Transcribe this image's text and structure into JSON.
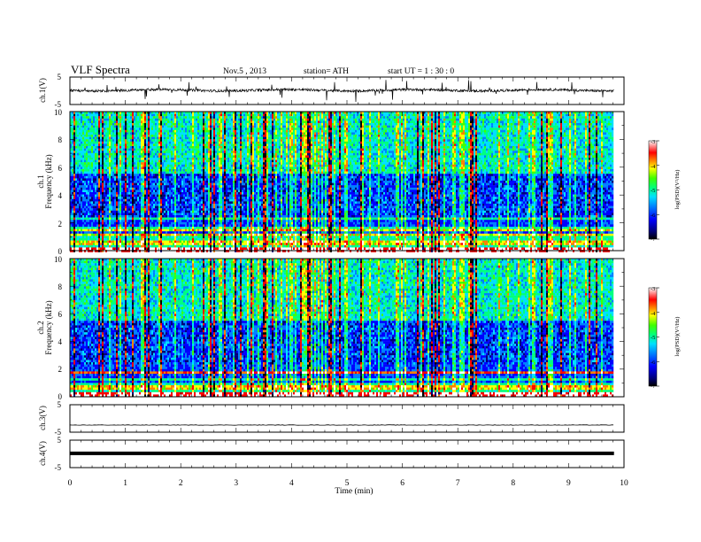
{
  "header": {
    "title": "VLF  Spectra",
    "date": "Nov.5  , 2013",
    "station": "station= ATH",
    "start": "start  UT  =    1 : 30 : 0"
  },
  "chart_data": [
    {
      "type": "line",
      "name": "ch1-waveform",
      "ylabel": "ch.1(V)",
      "ylim": [
        -5,
        5
      ],
      "yticks": [
        "5",
        "-5"
      ],
      "xlim": [
        0,
        10
      ],
      "data_end_min": 9.82,
      "baseline": 0.2
    },
    {
      "type": "heatmap",
      "name": "ch1-spectrogram",
      "ylabel": "ch.1",
      "ylabel2": "Frequency  (kHz)",
      "ylim": [
        0,
        10
      ],
      "yticks": [
        "0",
        "2",
        "4",
        "6",
        "8",
        "10"
      ],
      "xlim": [
        0,
        10
      ],
      "colorbar": {
        "label": "log(PSD)(V²/Hz)",
        "ticks": [
          "-3",
          "-4",
          "-5",
          "-6",
          "-7"
        ],
        "range": [
          -7,
          -3
        ]
      }
    },
    {
      "type": "heatmap",
      "name": "ch2-spectrogram",
      "ylabel": "ch.2",
      "ylabel2": "Frequency  (kHz)",
      "ylim": [
        0,
        10
      ],
      "yticks": [
        "0",
        "2",
        "4",
        "6",
        "8",
        "10"
      ],
      "xlim": [
        0,
        10
      ],
      "colorbar": {
        "label": "log(PSD)(V²/Hz)",
        "ticks": [
          "-3",
          "-4",
          "-5",
          "-6",
          "-7"
        ],
        "range": [
          -7,
          -3
        ]
      }
    },
    {
      "type": "line",
      "name": "ch3-waveform",
      "ylabel": "ch.3(V)",
      "ylim": [
        -5,
        5
      ],
      "yticks": [
        "5",
        "-5"
      ],
      "xlim": [
        0,
        10
      ],
      "baseline": -2.4
    },
    {
      "type": "line",
      "name": "ch4-waveform",
      "ylabel": "ch.4(V)",
      "ylim": [
        -5,
        5
      ],
      "yticks": [
        "5",
        "-5"
      ],
      "xlim": [
        0,
        10
      ],
      "baseline": 0.2,
      "xlabel": "Time  (min)",
      "xticks": [
        "0",
        "1",
        "2",
        "3",
        "4",
        "5",
        "6",
        "7",
        "8",
        "9",
        "10"
      ]
    }
  ],
  "colors": {
    "axis": "#000000",
    "colormap": [
      "#000000",
      "#00007a",
      "#0000ff",
      "#0080ff",
      "#00e0ff",
      "#00ff80",
      "#40ff00",
      "#ffff00",
      "#ff8000",
      "#ff0000",
      "#ffffff"
    ]
  }
}
